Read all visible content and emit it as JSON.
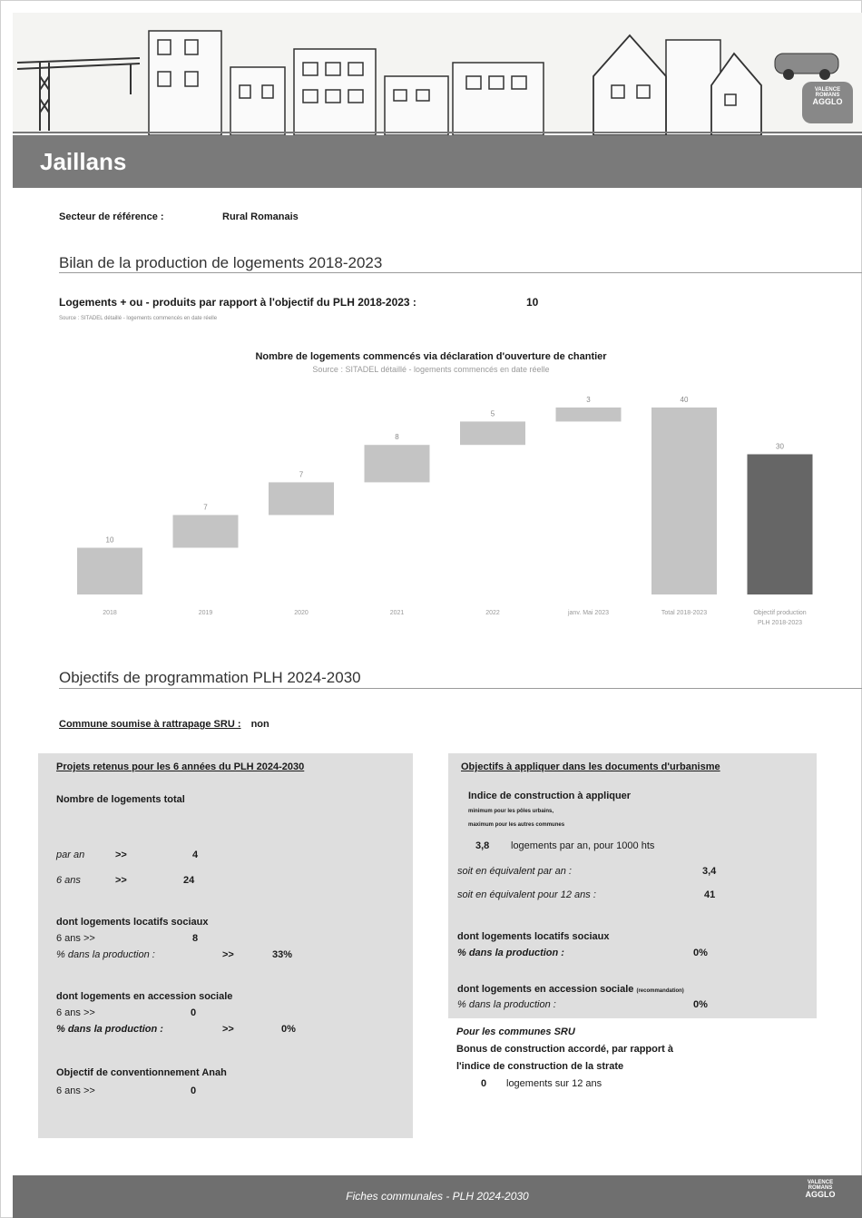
{
  "header": {
    "commune": "Jaillans",
    "logo_lines": [
      "VALENCE",
      "ROMANS",
      "AGGLO"
    ]
  },
  "sector": {
    "label": "Secteur de référence :",
    "value": "Rural Romanais"
  },
  "bilan": {
    "title": "Bilan de la production de logements 2018-2023",
    "line_label": "Logements + ou - produits par rapport à l'objectif du PLH 2018-2023 :",
    "line_value": "10",
    "source": "Source : SITADEL détaillé - logements commencés en date réelle"
  },
  "chart_data": {
    "type": "bar",
    "subtype": "waterfall",
    "title": "Nombre de logements commencés via déclaration d'ouverture de chantier",
    "subtitle": "Source : SITADEL détaillé - logements commencés en date réelle",
    "categories": [
      "2018",
      "2019",
      "2020",
      "2021",
      "2022",
      "janv. Mai 2023",
      "Total 2018-2023",
      "Objectif production PLH 2018-2023"
    ],
    "values": [
      10,
      7,
      7,
      8,
      5,
      3,
      40,
      30
    ],
    "kinds": [
      "step",
      "step",
      "step",
      "step",
      "step",
      "step",
      "total",
      "objective"
    ],
    "ylim": [
      0,
      40
    ],
    "colors": {
      "step": "#c4c4c4",
      "total": "#c4c4c4",
      "objective": "#666666"
    }
  },
  "programmation": {
    "title": "Objectifs de programmation PLH 2024-2030",
    "sru_label": "Commune soumise à rattrapage SRU :",
    "sru_value": "non"
  },
  "left_panel": {
    "header": "Projets retenus pour les 6 années du PLH 2024-2030",
    "total_label": "Nombre de logements total",
    "par_an_label": "par an",
    "par_an_arrow": ">>",
    "par_an_value": "4",
    "six_ans_label": "6 ans",
    "six_ans_arrow": ">>",
    "six_ans_value": "24",
    "sociaux_title": "dont logements locatifs sociaux",
    "sociaux_6ans": "6 ans  >>",
    "sociaux_6ans_value": "8",
    "sociaux_pct_label": "% dans la production :",
    "sociaux_pct_arrow": ">>",
    "sociaux_pct_value": "33%",
    "accession_title": "dont logements en accession sociale",
    "accession_6ans": "6 ans  >>",
    "accession_6ans_value": "0",
    "accession_pct_label": "% dans la production :",
    "accession_pct_arrow": ">>",
    "accession_pct_value": "0%",
    "anah_title": "Objectif de conventionnement Anah",
    "anah_6ans": "6 ans  >>",
    "anah_value": "0"
  },
  "right_panel": {
    "header": "Objectifs à appliquer dans les documents d'urbanisme",
    "indice_title": "Indice de construction à appliquer",
    "indice_note1": "minimum pour les pôles urbains,",
    "indice_note2": "maximum pour les autres communes",
    "indice_value": "3,8",
    "indice_unit": "logements par an, pour 1000 hts",
    "equiv_an_label": "soit en équivalent par an :",
    "equiv_an_value": "3,4",
    "equiv_12_label": "soit en équivalent pour 12 ans :",
    "equiv_12_value": "41",
    "sociaux_title": "dont logements locatifs sociaux",
    "sociaux_pct_label": "% dans la production :",
    "sociaux_pct_value": "0%",
    "accession_title": "dont logements en accession sociale",
    "accession_note": "(recommandation)",
    "accession_pct_label": "% dans la production :",
    "accession_pct_value": "0%"
  },
  "sru_note": {
    "line1": "Pour les communes SRU",
    "line2": "Bonus de construction accordé, par rapport à",
    "line3": "l'indice de construction de la strate",
    "value": "0",
    "unit": "logements sur 12 ans"
  },
  "footer": {
    "text": "Fiches communales - PLH 2024-2030"
  }
}
